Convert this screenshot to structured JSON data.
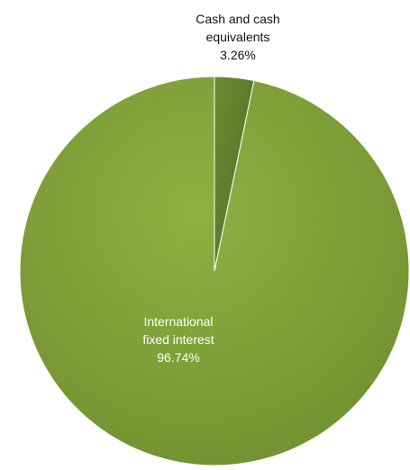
{
  "chart_data": {
    "type": "pie",
    "title": "",
    "slices": [
      {
        "label_lines": [
          "Cash and cash",
          "equivalents"
        ],
        "percent_label": "3.26%",
        "value": 3.26,
        "color": "#5f7f2e",
        "label_color": "#111111"
      },
      {
        "label_lines": [
          "International",
          "fixed interest"
        ],
        "percent_label": "96.74%",
        "value": 96.74,
        "color": "#84a63a",
        "label_color": "#ffffff"
      }
    ],
    "start_angle_deg": 0,
    "direction": "clockwise"
  }
}
